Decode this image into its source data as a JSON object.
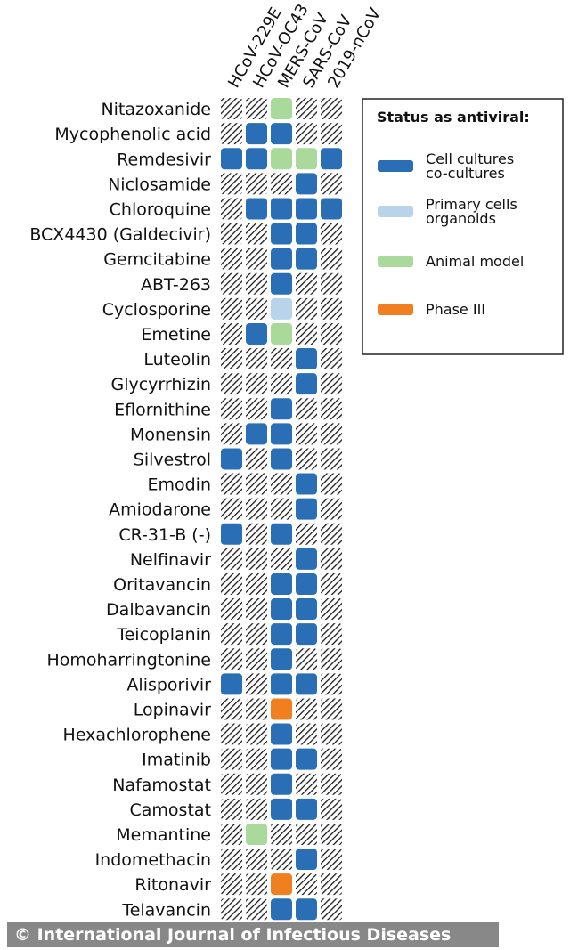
{
  "credit": "© International Journal of Infectious Diseases",
  "chart_data": {
    "type": "heatmap",
    "columns": [
      "HCoV-229E",
      "HCoV-OC43",
      "MERS-CoV",
      "SARS-CoV",
      "2019-nCoV"
    ],
    "legend": {
      "title": "Status as antiviral:",
      "placement": "top-right",
      "entries": [
        {
          "key": "cell",
          "lines": [
            "Cell cultures",
            "co-cultures"
          ],
          "color": "#2a6fb5"
        },
        {
          "key": "primary",
          "lines": [
            "Primary cells",
            "organoids"
          ],
          "color": "#b9d4ea"
        },
        {
          "key": "animal",
          "lines": [
            "Animal model"
          ],
          "color": "#a9d99b"
        },
        {
          "key": "phase3",
          "lines": [
            "Phase III"
          ],
          "color": "#f07f1f"
        }
      ]
    },
    "rows": [
      {
        "drug": "Nitazoxanide",
        "status": [
          "",
          "",
          "animal",
          "",
          ""
        ]
      },
      {
        "drug": "Mycophenolic acid",
        "status": [
          "",
          "cell",
          "cell",
          "",
          ""
        ]
      },
      {
        "drug": "Remdesivir",
        "status": [
          "cell",
          "cell",
          "animal",
          "animal",
          "cell"
        ]
      },
      {
        "drug": "Niclosamide",
        "status": [
          "",
          "",
          "",
          "cell",
          ""
        ]
      },
      {
        "drug": "Chloroquine",
        "status": [
          "",
          "cell",
          "cell",
          "cell",
          "cell"
        ]
      },
      {
        "drug": "BCX4430 (Galdecivir)",
        "status": [
          "",
          "",
          "cell",
          "cell",
          ""
        ]
      },
      {
        "drug": "Gemcitabine",
        "status": [
          "",
          "",
          "cell",
          "cell",
          ""
        ]
      },
      {
        "drug": "ABT-263",
        "status": [
          "",
          "",
          "cell",
          "",
          ""
        ]
      },
      {
        "drug": "Cyclosporine",
        "status": [
          "",
          "",
          "primary",
          "",
          ""
        ]
      },
      {
        "drug": "Emetine",
        "status": [
          "",
          "cell",
          "animal",
          "",
          ""
        ]
      },
      {
        "drug": "Luteolin",
        "status": [
          "",
          "",
          "",
          "cell",
          ""
        ]
      },
      {
        "drug": "Glycyrrhizin",
        "status": [
          "",
          "",
          "",
          "cell",
          ""
        ]
      },
      {
        "drug": "Eflornithine",
        "status": [
          "",
          "",
          "cell",
          "",
          ""
        ]
      },
      {
        "drug": "Monensin",
        "status": [
          "",
          "cell",
          "cell",
          "",
          ""
        ]
      },
      {
        "drug": "Silvestrol",
        "status": [
          "cell",
          "",
          "cell",
          "",
          ""
        ]
      },
      {
        "drug": "Emodin",
        "status": [
          "",
          "",
          "",
          "cell",
          ""
        ]
      },
      {
        "drug": "Amiodarone",
        "status": [
          "",
          "",
          "",
          "cell",
          ""
        ]
      },
      {
        "drug": "CR-31-B (-)",
        "status": [
          "cell",
          "",
          "cell",
          "",
          ""
        ]
      },
      {
        "drug": "Nelfinavir",
        "status": [
          "",
          "",
          "",
          "cell",
          ""
        ]
      },
      {
        "drug": "Oritavancin",
        "status": [
          "",
          "",
          "cell",
          "cell",
          ""
        ]
      },
      {
        "drug": "Dalbavancin",
        "status": [
          "",
          "",
          "cell",
          "cell",
          ""
        ]
      },
      {
        "drug": "Teicoplanin",
        "status": [
          "",
          "",
          "cell",
          "cell",
          ""
        ]
      },
      {
        "drug": "Homoharringtonine",
        "status": [
          "",
          "",
          "cell",
          "",
          ""
        ]
      },
      {
        "drug": "Alisporivir",
        "status": [
          "cell",
          "",
          "cell",
          "cell",
          ""
        ]
      },
      {
        "drug": "Lopinavir",
        "status": [
          "",
          "",
          "phase3",
          "",
          ""
        ]
      },
      {
        "drug": "Hexachlorophene",
        "status": [
          "",
          "",
          "cell",
          "",
          ""
        ]
      },
      {
        "drug": "Imatinib",
        "status": [
          "",
          "",
          "cell",
          "cell",
          ""
        ]
      },
      {
        "drug": "Nafamostat",
        "status": [
          "",
          "",
          "cell",
          "",
          ""
        ]
      },
      {
        "drug": "Camostat",
        "status": [
          "",
          "",
          "cell",
          "cell",
          ""
        ]
      },
      {
        "drug": "Memantine",
        "status": [
          "",
          "animal",
          "",
          "",
          ""
        ]
      },
      {
        "drug": "Indomethacin",
        "status": [
          "",
          "",
          "",
          "cell",
          ""
        ]
      },
      {
        "drug": "Ritonavir",
        "status": [
          "",
          "",
          "phase3",
          "",
          ""
        ]
      },
      {
        "drug": "Telavancin",
        "status": [
          "",
          "",
          "cell",
          "cell",
          ""
        ]
      }
    ]
  }
}
